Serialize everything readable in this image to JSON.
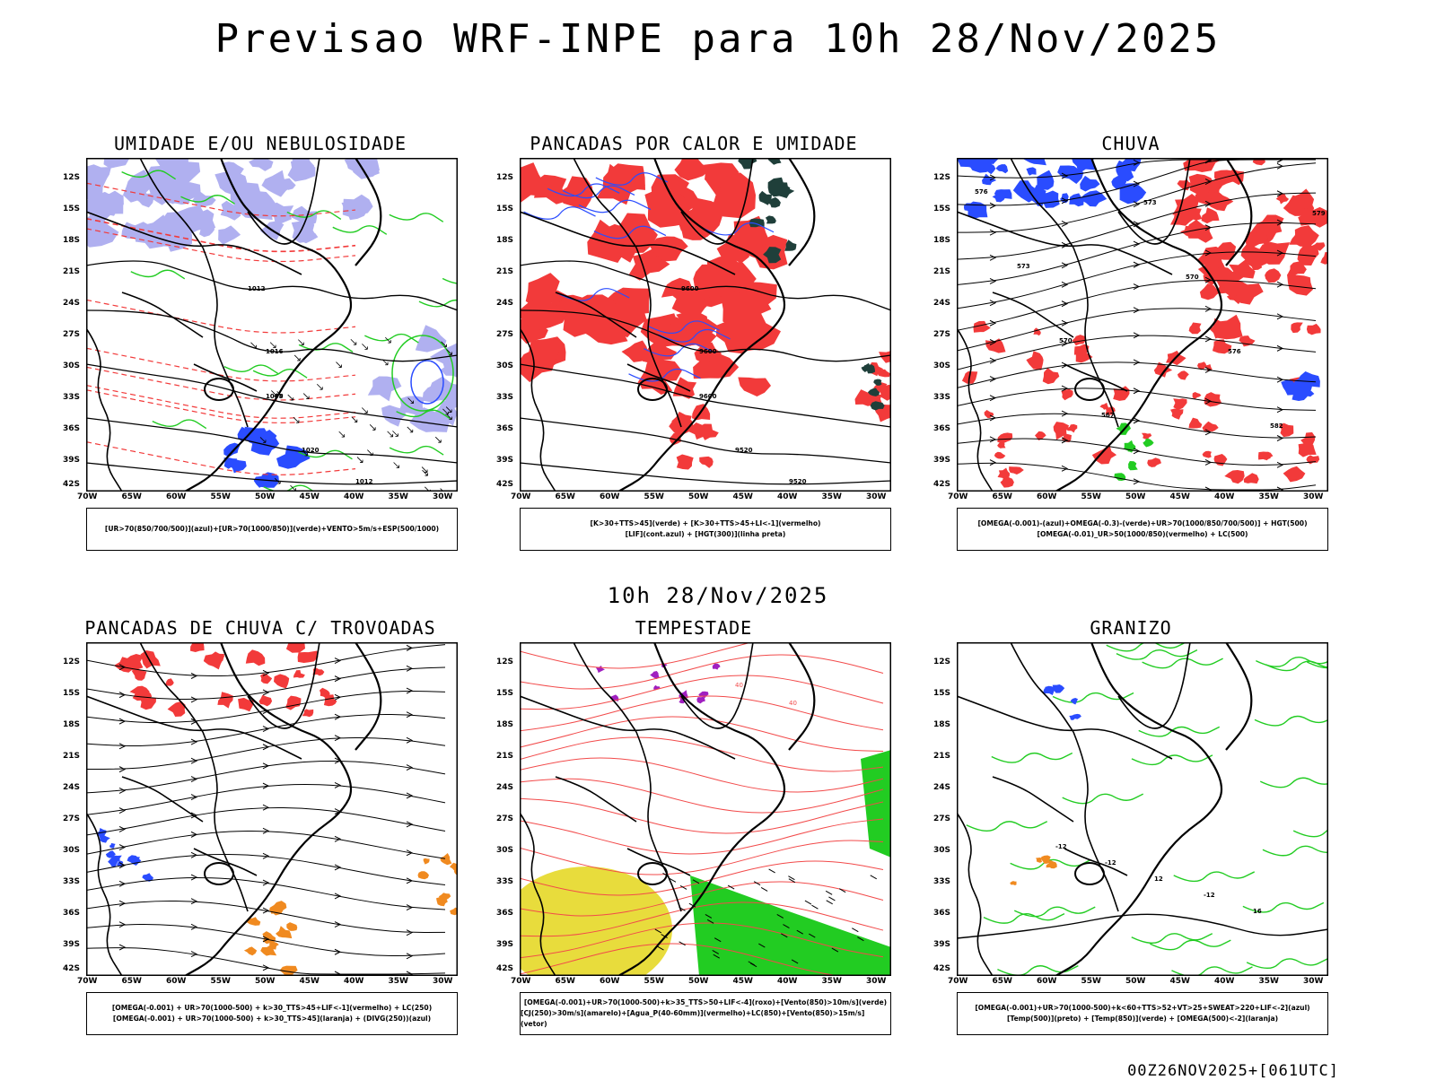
{
  "header": {
    "title": "Previsao WRF-INPE  para 10h 28/Nov/2025",
    "mid_date": "10h 28/Nov/2025",
    "run": "00Z26NOV2025+[061UTC]"
  },
  "axes": {
    "lat": [
      "12S",
      "15S",
      "18S",
      "21S",
      "24S",
      "27S",
      "30S",
      "33S",
      "36S",
      "39S",
      "42S"
    ],
    "lon": [
      "70W",
      "65W",
      "60W",
      "55W",
      "50W",
      "45W",
      "40W",
      "35W",
      "30W"
    ]
  },
  "panels": [
    {
      "id": "umidade",
      "title": "UMIDADE E/OU NEBULOSIDADE",
      "legend": [
        "[UR>70(850/700/500)](azul)+[UR>70(1000/850)](verde)+VENTO>5m/s+ESP(500/1000)"
      ],
      "labels": [
        "1012",
        "1016",
        "1008",
        "1020",
        "1012",
        "1016",
        "1012",
        "1008"
      ]
    },
    {
      "id": "pancadas",
      "title": "PANCADAS POR CALOR E UMIDADE",
      "legend": [
        "[K>30+TTS>45](verde)  +  [K>30+TTS>45+LI<-1](vermelho)",
        "[LIF](cont.azul)  +  [HGT(300)](linha preta)"
      ],
      "labels": [
        "9600",
        "9600",
        "9600",
        "9520",
        "9520",
        "9440",
        "9360",
        "9440",
        "9520",
        "9380",
        "9380",
        "9280",
        "9280"
      ]
    },
    {
      "id": "chuva",
      "title": "CHUVA",
      "legend": [
        "[OMEGA(-0.001)-(azul)+OMEGA(-0.3)-(verde)+UR>70(1000/850/700/500)]  +  HGT(500)",
        "[OMEGA(-0.01)_UR>50(1000/850)(vermelho)  +  LC(500)"
      ],
      "labels": [
        "576",
        "573",
        "570",
        "567",
        "573",
        "570",
        "576",
        "582",
        "579"
      ]
    },
    {
      "id": "trovoadas",
      "title": "PANCADAS DE CHUVA C/ TROVOADAS",
      "legend": [
        "[OMEGA(-0.001)  +  UR>70(1000-500)  +  k>30_TTS>45+LIF<-1](vermelho)  +  LC(250)",
        "[OMEGA(-0.001)  +  UR>70(1000-500)  +  k>30_TTS>45](laranja)  +  (DIVG(250))(azul)"
      ],
      "labels": []
    },
    {
      "id": "tempestade",
      "title": "TEMPESTADE",
      "legend": [
        "[OMEGA(-0.001)+UR>70(1000-500)+k>35_TTS>50+LIF<-4](roxo)+[Vento(850)>10m/s](verde)",
        "[CJ(250)>30m/s](amarelo)+[Agua_P(40-60mm)](vermelho)+LC(850)+[Vento(850)>15m/s](vetor)"
      ],
      "labels": [
        "40",
        "40"
      ]
    },
    {
      "id": "granizo",
      "title": "GRANIZO",
      "legend": [
        "[OMEGA(-0.001)+UR>70(1000-500)+k<60+TTS>52+VT>25+SWEAT>220+LIF<-2](azul)",
        "[Temp(500)](preto)  +  [Temp(850)](verde)  +  [OMEGA(500)<-2](laranja)"
      ],
      "labels": [
        "-12",
        "-12",
        "12",
        "-12",
        "16"
      ]
    }
  ],
  "colors": {
    "red": "#f23a3a",
    "green": "#22cc22",
    "blue": "#2a4cff",
    "lavender": "#b0b0f0",
    "yellow": "#e8dc3c",
    "orange": "#f08a20",
    "purple": "#a020c0",
    "dark": "#1f3f3a"
  }
}
